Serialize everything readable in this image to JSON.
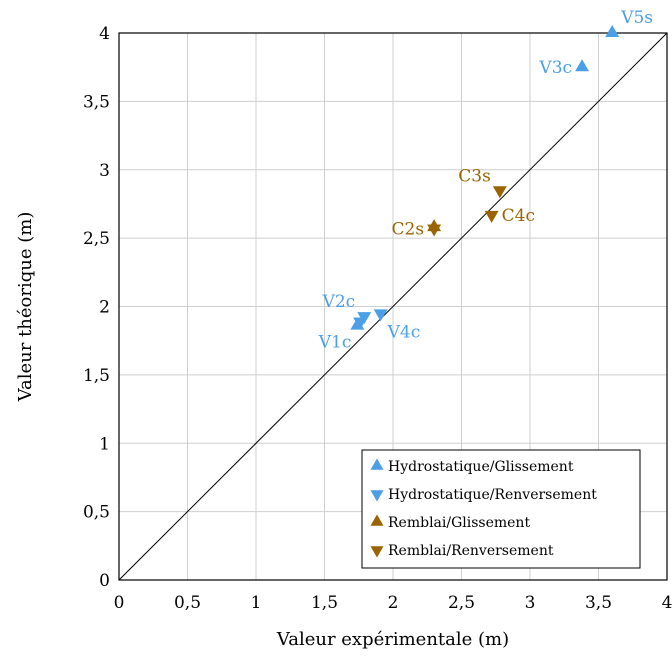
{
  "chart_data": {
    "type": "scatter",
    "title": "",
    "xlabel": "Valeur expérimentale (m)",
    "ylabel": "Valeur théorique (m)",
    "xlim": [
      0,
      4
    ],
    "ylim": [
      0,
      4
    ],
    "xticks": [
      {
        "value": 0,
        "label": "0"
      },
      {
        "value": 0.5,
        "label": "0,5"
      },
      {
        "value": 1,
        "label": "1"
      },
      {
        "value": 1.5,
        "label": "1,5"
      },
      {
        "value": 2,
        "label": "2"
      },
      {
        "value": 2.5,
        "label": "2,5"
      },
      {
        "value": 3,
        "label": "3"
      },
      {
        "value": 3.5,
        "label": "3,5"
      },
      {
        "value": 4,
        "label": "4"
      }
    ],
    "yticks": [
      {
        "value": 0,
        "label": "0"
      },
      {
        "value": 0.5,
        "label": "0,5"
      },
      {
        "value": 1,
        "label": "1"
      },
      {
        "value": 1.5,
        "label": "1,5"
      },
      {
        "value": 2,
        "label": "2"
      },
      {
        "value": 2.5,
        "label": "2,5"
      },
      {
        "value": 3,
        "label": "3"
      },
      {
        "value": 3.5,
        "label": "3,5"
      },
      {
        "value": 4,
        "label": "4"
      }
    ],
    "grid": true,
    "reference_line": {
      "from": [
        0,
        0
      ],
      "to": [
        4,
        4
      ],
      "color": "#000000"
    },
    "legend_position": "bottom-right",
    "series": [
      {
        "name": "Hydrostatique/Glissement",
        "marker": "triangle-up",
        "color": "#4b9fe6",
        "points": [
          {
            "x": 1.74,
            "y": 1.86,
            "label": "V1c",
            "label_side": "below-left"
          },
          {
            "x": 3.38,
            "y": 3.75,
            "label": "V3c",
            "label_side": "left"
          },
          {
            "x": 3.6,
            "y": 4.0,
            "label": "V5s",
            "label_side": "above-right"
          }
        ]
      },
      {
        "name": "Hydrostatique/Renversement",
        "marker": "triangle-down",
        "color": "#4b9fe6",
        "points": [
          {
            "x": 1.76,
            "y": 1.89,
            "label": "",
            "label_side": "none"
          },
          {
            "x": 1.79,
            "y": 1.93,
            "label": "V2c",
            "label_side": "above-left"
          },
          {
            "x": 1.91,
            "y": 1.95,
            "label": "V4c",
            "label_side": "below-right"
          }
        ]
      },
      {
        "name": "Remblai/Glissement",
        "marker": "triangle-up",
        "color": "#9a6400",
        "points": [
          {
            "x": 2.3,
            "y": 2.58,
            "label": "",
            "label_side": "none"
          }
        ]
      },
      {
        "name": "Remblai/Renversement",
        "marker": "triangle-down",
        "color": "#9a6400",
        "points": [
          {
            "x": 2.3,
            "y": 2.57,
            "label": "C2s",
            "label_side": "left"
          },
          {
            "x": 2.78,
            "y": 2.85,
            "label": "C3s",
            "label_side": "above-left"
          },
          {
            "x": 2.72,
            "y": 2.67,
            "label": "C4c",
            "label_side": "right"
          }
        ]
      }
    ]
  }
}
